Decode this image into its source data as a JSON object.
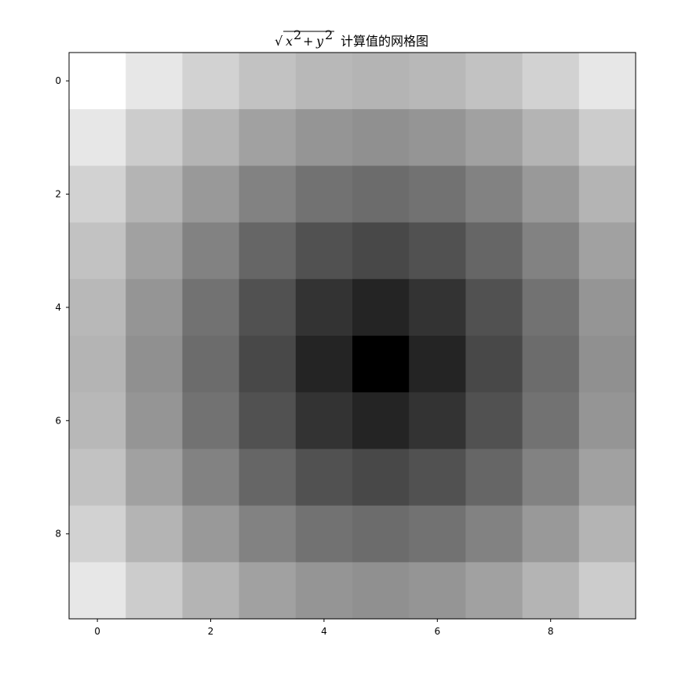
{
  "chart_data": {
    "type": "heatmap",
    "title": "√x²+y² 计算值的网格图",
    "title_math": "√",
    "title_sup_x": "x",
    "title_sup_y": "y",
    "title_plus": "+",
    "title_exp": "2",
    "title_cjk": "计算值的网格图",
    "colormap": "gray_r",
    "rows": 10,
    "cols": 10,
    "center": [
      5,
      5
    ],
    "xticks": [
      0,
      2,
      4,
      6,
      8
    ],
    "yticks": [
      0,
      2,
      4,
      6,
      8
    ],
    "xtick_labels": [
      "0",
      "2",
      "4",
      "6",
      "8"
    ],
    "ytick_labels": [
      "0",
      "2",
      "4",
      "6",
      "8"
    ],
    "xlim": [
      -0.5,
      9.5
    ],
    "ylim": [
      9.5,
      -0.5
    ],
    "values": [
      [
        7.07,
        6.4,
        5.83,
        5.39,
        5.1,
        5.0,
        5.1,
        5.39,
        5.83,
        6.4
      ],
      [
        6.4,
        5.66,
        5.0,
        4.47,
        4.12,
        4.0,
        4.12,
        4.47,
        5.0,
        5.66
      ],
      [
        5.83,
        5.0,
        4.24,
        3.61,
        3.16,
        3.0,
        3.16,
        3.61,
        4.24,
        5.0
      ],
      [
        5.39,
        4.47,
        3.61,
        2.83,
        2.24,
        2.0,
        2.24,
        2.83,
        3.61,
        4.47
      ],
      [
        5.1,
        4.12,
        3.16,
        2.24,
        1.41,
        1.0,
        1.41,
        2.24,
        3.16,
        4.12
      ],
      [
        5.0,
        4.0,
        3.0,
        2.0,
        1.0,
        0.0,
        1.0,
        2.0,
        3.0,
        4.0
      ],
      [
        5.1,
        4.12,
        3.16,
        2.24,
        1.41,
        1.0,
        1.41,
        2.24,
        3.16,
        4.12
      ],
      [
        5.39,
        4.47,
        3.61,
        2.83,
        2.24,
        2.0,
        2.24,
        2.83,
        3.61,
        4.47
      ],
      [
        5.83,
        5.0,
        4.24,
        3.61,
        3.16,
        3.0,
        3.16,
        3.61,
        4.24,
        5.0
      ],
      [
        6.4,
        5.66,
        5.0,
        4.47,
        4.12,
        4.0,
        4.12,
        4.47,
        5.0,
        5.66
      ]
    ]
  }
}
